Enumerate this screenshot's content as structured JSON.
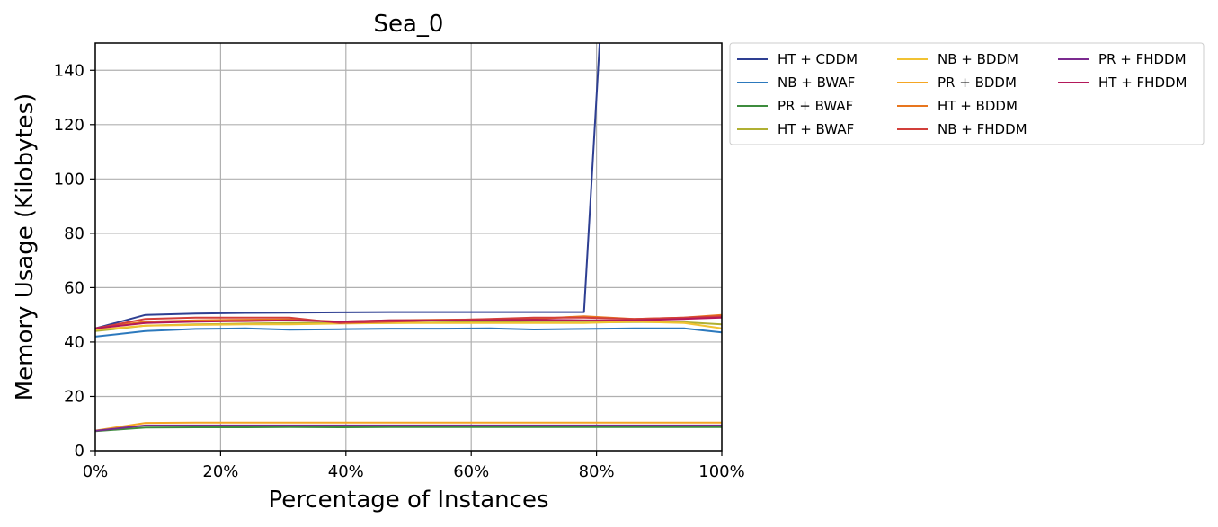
{
  "chart_data": {
    "type": "line",
    "title": "Sea_0",
    "xlabel": "Percentage of Instances",
    "ylabel": "Memory Usage (Kilobytes)",
    "xlim": [
      0,
      100
    ],
    "ylim": [
      0,
      150
    ],
    "x_tick_labels": [
      "0%",
      "20%",
      "40%",
      "60%",
      "80%",
      "100%"
    ],
    "x_ticks": [
      0,
      20,
      40,
      60,
      80,
      100
    ],
    "y_ticks": [
      0,
      20,
      40,
      60,
      80,
      100,
      120,
      140
    ],
    "grid": true,
    "legend_position": "outside-right",
    "legend_columns": 3,
    "x": [
      0,
      8,
      16,
      24,
      31,
      39,
      47,
      55,
      63,
      70,
      78,
      86,
      94,
      100
    ],
    "series": [
      {
        "name": "HT + CDDM",
        "color": "#2e3f92",
        "values": [
          45,
          50,
          50.5,
          50.7,
          50.8,
          50.9,
          51,
          51,
          51,
          51,
          51,
          null,
          null,
          null
        ],
        "extra_points": [
          [
            80.5,
            150
          ]
        ]
      },
      {
        "name": "NB + BWAF",
        "color": "#2c79bd",
        "values": [
          42,
          44,
          44.8,
          45,
          44.5,
          44.7,
          44.9,
          44.9,
          45,
          44.6,
          44.8,
          45,
          45,
          43.5
        ]
      },
      {
        "name": "PR + BWAF",
        "color": "#3d8c3d",
        "values": [
          7.2,
          8.5,
          8.6,
          8.6,
          8.7,
          8.6,
          8.7,
          8.7,
          8.7,
          8.7,
          8.7,
          8.7,
          8.7,
          8.7
        ]
      },
      {
        "name": "HT + BWAF",
        "color": "#b0b032",
        "values": [
          44,
          46,
          46.5,
          46.8,
          47,
          47,
          47,
          47.2,
          47.3,
          47.2,
          47.2,
          47.3,
          47.3,
          46.5
        ]
      },
      {
        "name": "NB + BDDM",
        "color": "#f1c232",
        "values": [
          44.5,
          46,
          46.3,
          46.5,
          46.5,
          46.8,
          47,
          47,
          47,
          47,
          47,
          47.5,
          47,
          45
        ]
      },
      {
        "name": "PR + BDDM",
        "color": "#f5a623",
        "values": [
          7.4,
          10.2,
          10.3,
          10.3,
          10.3,
          10.3,
          10.3,
          10.3,
          10.3,
          10.3,
          10.3,
          10.3,
          10.3,
          10.3
        ]
      },
      {
        "name": "HT + BDDM",
        "color": "#e8761e",
        "values": [
          45,
          47.5,
          48,
          48.2,
          48.3,
          47.5,
          48,
          48.2,
          48.3,
          48.5,
          49.5,
          48.5,
          49,
          50
        ]
      },
      {
        "name": "NB + FHDDM",
        "color": "#d23f3a",
        "values": [
          45,
          48.5,
          49,
          49,
          49,
          47,
          47.5,
          48,
          48.5,
          49,
          49,
          48.5,
          49,
          49.5
        ]
      },
      {
        "name": "PR + FHDDM",
        "color": "#7b2a8f",
        "values": [
          7.3,
          9.3,
          9.3,
          9.3,
          9.3,
          9.3,
          9.3,
          9.3,
          9.3,
          9.3,
          9.3,
          9.3,
          9.3,
          9.3
        ]
      },
      {
        "name": "HT + FHDDM",
        "color": "#b3185a",
        "values": [
          45,
          47,
          47.5,
          47.7,
          48,
          47.5,
          48,
          48,
          48,
          48.2,
          48,
          48,
          48.5,
          49
        ]
      }
    ]
  }
}
